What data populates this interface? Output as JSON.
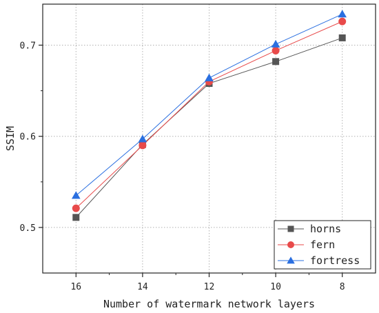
{
  "chart_data": {
    "type": "line",
    "title": "",
    "xlabel": "Number of watermark network layers",
    "ylabel": "SSIM",
    "x": [
      16,
      14,
      12,
      10,
      8
    ],
    "x_tick_labels": [
      "16",
      "14",
      "12",
      "10",
      "8"
    ],
    "xlim": [
      17,
      7
    ],
    "x_reversed": true,
    "ylim": [
      0.45,
      0.745
    ],
    "y_ticks": [
      0.5,
      0.6,
      0.7
    ],
    "y_tick_labels": [
      "0.5",
      "0.6",
      "0.7"
    ],
    "grid": true,
    "legend_position": "bottom-right",
    "series": [
      {
        "name": "horns",
        "values": [
          0.511,
          0.591,
          0.658,
          0.682,
          0.708
        ],
        "color": "#555555",
        "marker": "square"
      },
      {
        "name": "fern",
        "values": [
          0.521,
          0.59,
          0.66,
          0.694,
          0.726
        ],
        "color": "#e84a4a",
        "marker": "circle"
      },
      {
        "name": "fortress",
        "values": [
          0.535,
          0.597,
          0.664,
          0.701,
          0.734
        ],
        "color": "#2a6fe0",
        "marker": "triangle"
      }
    ]
  }
}
